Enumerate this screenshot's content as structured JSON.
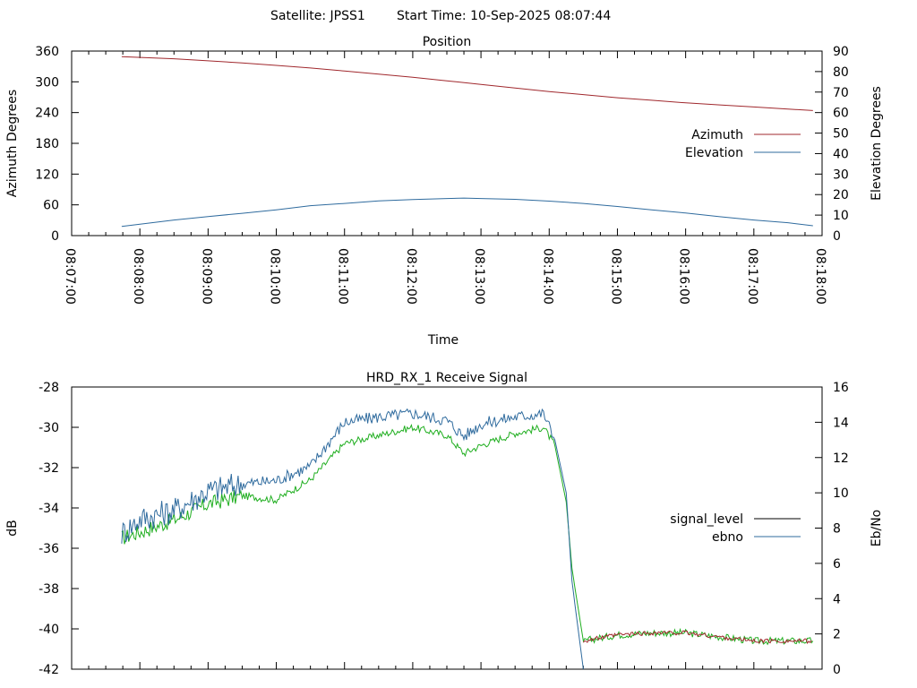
{
  "header": {
    "satellite": "Satellite: JPSS1",
    "start_time": "Start Time: 10-Sep-2025 08:07:44"
  },
  "chart_data": [
    {
      "type": "line",
      "title": "Position",
      "xlabel": "Time",
      "ylabel": "Azimuth Degrees",
      "y2label": "Elevation Degrees",
      "x_tick_labels": [
        "08:07:00",
        "08:08:00",
        "08:09:00",
        "08:10:00",
        "08:11:00",
        "08:12:00",
        "08:13:00",
        "08:14:00",
        "08:15:00",
        "08:16:00",
        "08:17:00",
        "08:18:00"
      ],
      "x_range": [
        "08:07:00",
        "08:18:00"
      ],
      "ylim": [
        0,
        360
      ],
      "y_ticks": [
        0,
        60,
        120,
        180,
        240,
        300,
        360
      ],
      "y2lim": [
        0,
        90
      ],
      "y2_ticks": [
        0,
        10,
        20,
        30,
        40,
        50,
        60,
        70,
        80,
        90
      ],
      "legend_position": "right",
      "grid": false,
      "series": [
        {
          "name": "Azimuth",
          "axis": "y",
          "color": "#a0282d",
          "x": [
            "08:07:44",
            "08:08:30",
            "08:09:00",
            "08:09:30",
            "08:10:00",
            "08:10:30",
            "08:11:00",
            "08:11:30",
            "08:12:00",
            "08:12:30",
            "08:13:00",
            "08:13:30",
            "08:14:00",
            "08:14:30",
            "08:15:00",
            "08:15:30",
            "08:16:00",
            "08:16:30",
            "08:17:00",
            "08:17:30",
            "08:17:52"
          ],
          "values": [
            349,
            345,
            341,
            337,
            332,
            327,
            321,
            315,
            309,
            302,
            295,
            288,
            281,
            275,
            269,
            264,
            259,
            255,
            251,
            247,
            244
          ]
        },
        {
          "name": "Elevation",
          "axis": "y2",
          "color": "#2f6b9e",
          "x": [
            "08:07:44",
            "08:08:30",
            "08:09:00",
            "08:09:30",
            "08:10:00",
            "08:10:30",
            "08:11:00",
            "08:11:30",
            "08:12:00",
            "08:12:30",
            "08:12:45",
            "08:13:00",
            "08:13:30",
            "08:14:00",
            "08:14:30",
            "08:15:00",
            "08:15:30",
            "08:16:00",
            "08:16:30",
            "08:17:00",
            "08:17:30",
            "08:17:52"
          ],
          "values": [
            4.5,
            7.6,
            9.3,
            10.9,
            12.6,
            14.6,
            15.7,
            16.9,
            17.6,
            18.1,
            18.3,
            18.1,
            17.7,
            16.8,
            15.7,
            14.2,
            12.6,
            11.0,
            9.2,
            7.6,
            6.3,
            4.8
          ]
        }
      ]
    },
    {
      "type": "line",
      "title": "HRD_RX_1 Receive Signal",
      "ylabel": "dB",
      "y2label": "Eb/No",
      "ylim": [
        -42,
        -28
      ],
      "y_ticks": [
        -42,
        -40,
        -38,
        -36,
        -34,
        -32,
        -30,
        -28
      ],
      "y2lim": [
        0,
        16
      ],
      "y2_ticks": [
        0,
        2,
        4,
        6,
        8,
        10,
        12,
        14,
        16
      ],
      "legend_position": "right",
      "grid": false,
      "series": [
        {
          "name": "signal_level",
          "axis": "y",
          "color": "#000000",
          "x": [
            "08:07:44",
            "08:08:00",
            "08:08:30",
            "08:09:00",
            "08:09:30",
            "08:10:00",
            "08:10:30",
            "08:11:00",
            "08:11:30",
            "08:12:00",
            "08:12:30",
            "08:12:45",
            "08:13:00",
            "08:13:30",
            "08:13:55",
            "08:14:05",
            "08:14:15",
            "08:14:20",
            "08:14:30",
            "08:15:00",
            "08:15:30",
            "08:16:00",
            "08:16:30",
            "08:17:00",
            "08:17:30",
            "08:17:52"
          ],
          "values": [
            -35.5,
            -35.2,
            -34.6,
            -33.8,
            -33.4,
            -33.6,
            -32.6,
            -30.8,
            -30.4,
            -30.0,
            -30.4,
            -31.3,
            -30.9,
            -30.3,
            -30.0,
            -30.9,
            -33.7,
            -37.0,
            -40.6,
            -40.3,
            -40.2,
            -40.2,
            -40.4,
            -40.6,
            -40.6,
            -40.6
          ]
        },
        {
          "name": "ebno",
          "axis": "y2",
          "color": "#2f6b9e",
          "x": [
            "08:07:44",
            "08:08:00",
            "08:08:30",
            "08:09:00",
            "08:09:30",
            "08:10:00",
            "08:10:30",
            "08:11:00",
            "08:11:30",
            "08:12:00",
            "08:12:30",
            "08:12:45",
            "08:13:00",
            "08:13:30",
            "08:13:55",
            "08:14:05",
            "08:14:15",
            "08:14:20",
            "08:14:30"
          ],
          "values": [
            7.7,
            8.5,
            9.0,
            10.1,
            10.5,
            10.7,
            11.5,
            14.0,
            14.3,
            14.5,
            14.1,
            13.2,
            13.9,
            14.3,
            14.5,
            13.0,
            10.0,
            5.0,
            0.0
          ]
        }
      ]
    }
  ]
}
